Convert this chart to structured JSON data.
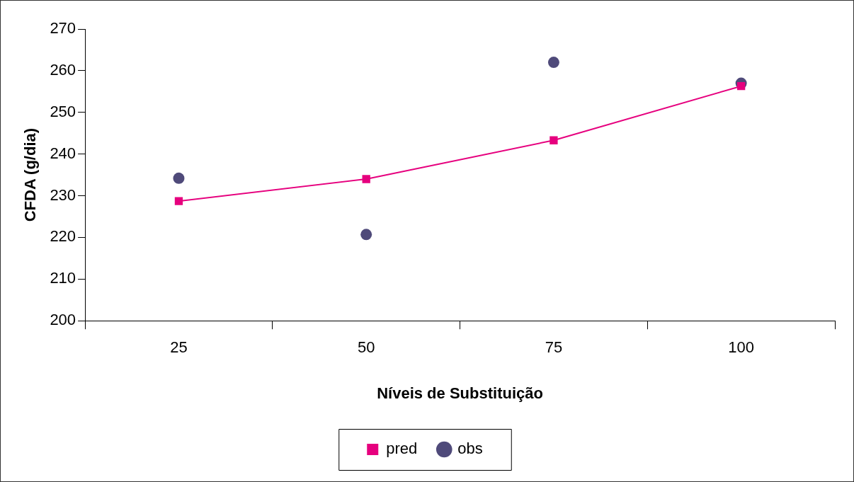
{
  "chart_data": {
    "type": "line",
    "xlabel": "Níveis de Substituição",
    "ylabel": "CFDA (g/dia)",
    "categories": [
      "25",
      "50",
      "75",
      "100"
    ],
    "series": [
      {
        "name": "obs",
        "type": "scatter",
        "color": "#4f4a7a",
        "marker": "circle",
        "values": [
          234.2,
          220.7,
          262,
          257
        ]
      },
      {
        "name": "pred",
        "color": "#e6007e",
        "marker": "square",
        "line_style": "solid",
        "values": [
          228.7,
          234,
          243.3,
          256.3
        ]
      }
    ],
    "ylim": [
      200,
      270
    ],
    "yticks": [
      200,
      210,
      220,
      230,
      240,
      250,
      260,
      270
    ],
    "grid": false,
    "legend": "bottom"
  }
}
